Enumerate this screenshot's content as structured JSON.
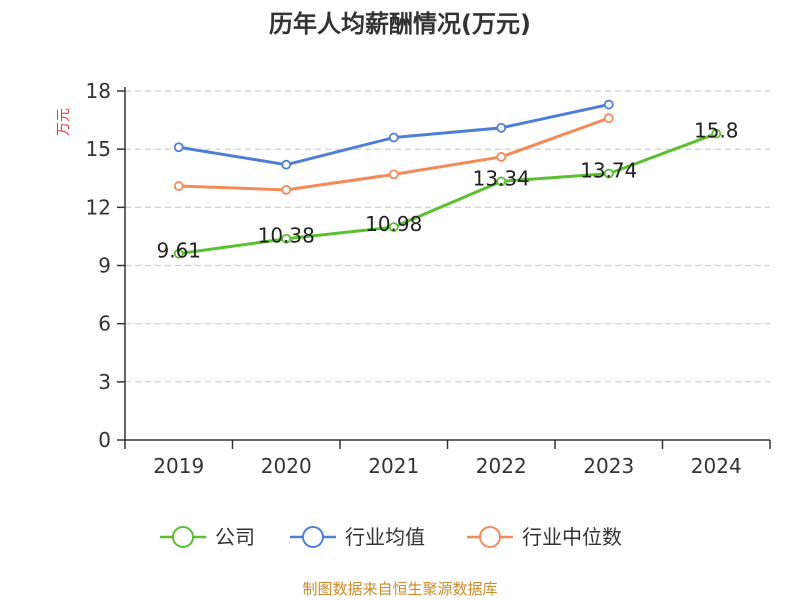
{
  "chart_data": {
    "type": "line",
    "title": "历年人均薪酬情况(万元)",
    "ylabel": "万元",
    "xlabel": "",
    "ylim": [
      0,
      18
    ],
    "yticks": [
      0,
      3,
      6,
      9,
      12,
      15,
      18
    ],
    "categories": [
      "2019",
      "2020",
      "2021",
      "2022",
      "2023",
      "2024"
    ],
    "grid": true,
    "legend_position": "bottom",
    "series": [
      {
        "name": "公司",
        "color": "#5ac02f",
        "values": [
          9.61,
          10.38,
          10.98,
          13.34,
          13.74,
          15.8
        ],
        "data_labels": [
          "9.61",
          "10.38",
          "10.98",
          "13.34",
          "13.74",
          "15.8"
        ]
      },
      {
        "name": "行业均值",
        "color": "#4e7fd6",
        "values": [
          15.1,
          14.2,
          15.6,
          16.1,
          17.3,
          null
        ]
      },
      {
        "name": "行业中位数",
        "color": "#f48a58",
        "values": [
          13.1,
          12.9,
          13.7,
          14.6,
          16.6,
          null
        ]
      }
    ]
  },
  "source": "制图数据来自恒生聚源数据库",
  "colors": {
    "axis": "#333333",
    "grid": "#cccccc",
    "unit": "#e83e3e",
    "source": "#c98c2b"
  }
}
